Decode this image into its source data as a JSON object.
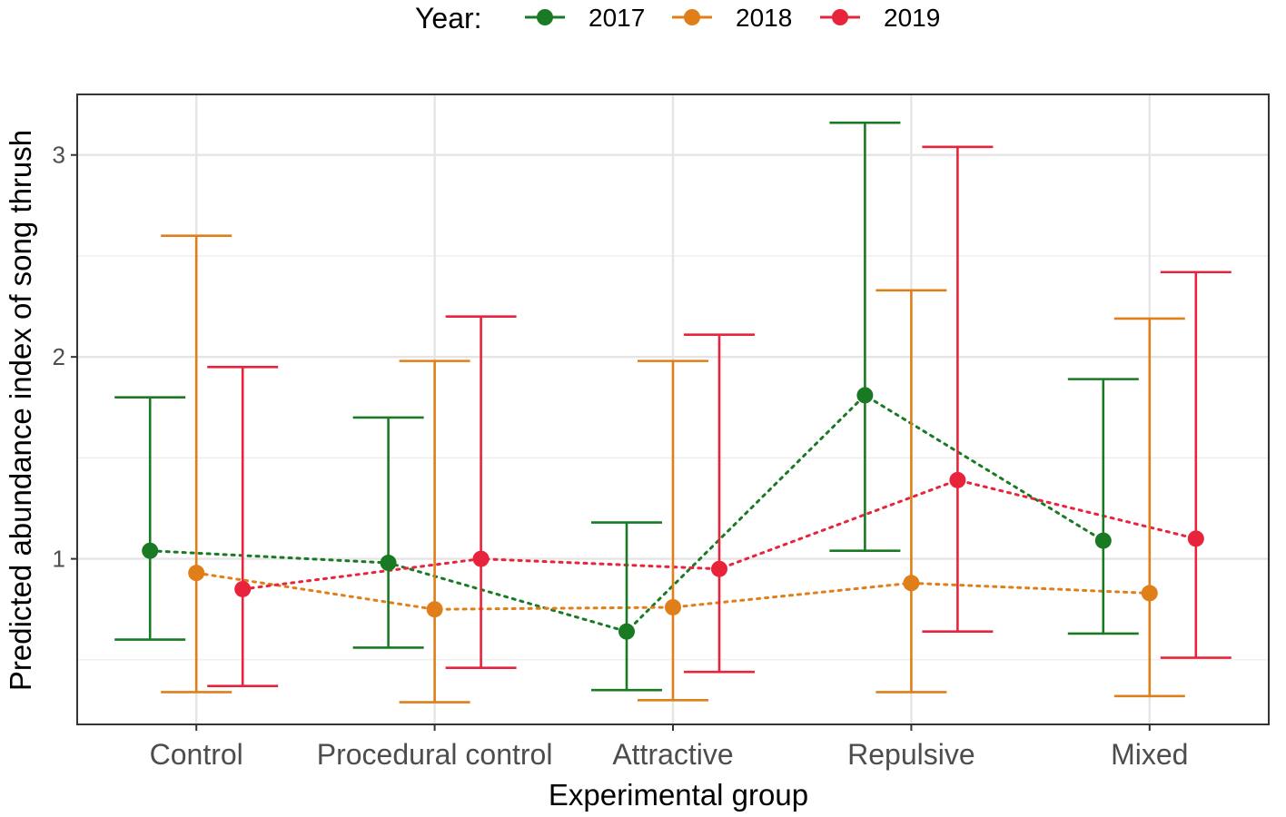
{
  "chart_data": {
    "type": "point-errorbar",
    "xlabel": "Experimental group",
    "ylabel": "Predicted abundance index of song thrush",
    "categories": [
      "Control",
      "Procedural control",
      "Attractive",
      "Repulsive",
      "Mixed"
    ],
    "ylim": [
      0.18,
      3.3
    ],
    "y_major_ticks": [
      1,
      2,
      3
    ],
    "y_minor_ticks": [
      0.5,
      1.5,
      2.5
    ],
    "legend": {
      "title": "Year:",
      "position": "top"
    },
    "grid": true,
    "series": [
      {
        "name": "2017",
        "color": "#1a7a24",
        "values": [
          1.04,
          0.98,
          0.64,
          1.81,
          1.09
        ],
        "lower": [
          0.6,
          0.56,
          0.35,
          1.04,
          0.63
        ],
        "upper": [
          1.8,
          1.7,
          1.18,
          3.16,
          1.89
        ]
      },
      {
        "name": "2018",
        "color": "#e07f1a",
        "values": [
          0.93,
          0.75,
          0.76,
          0.88,
          0.83
        ],
        "lower": [
          0.34,
          0.29,
          0.3,
          0.34,
          0.32
        ],
        "upper": [
          2.6,
          1.98,
          1.98,
          2.33,
          2.19
        ]
      },
      {
        "name": "2019",
        "color": "#e8243c",
        "values": [
          0.85,
          1.0,
          0.95,
          1.39,
          1.1
        ],
        "lower": [
          0.37,
          0.46,
          0.44,
          0.64,
          0.51
        ],
        "upper": [
          1.95,
          2.2,
          2.11,
          3.04,
          2.42
        ]
      }
    ]
  }
}
